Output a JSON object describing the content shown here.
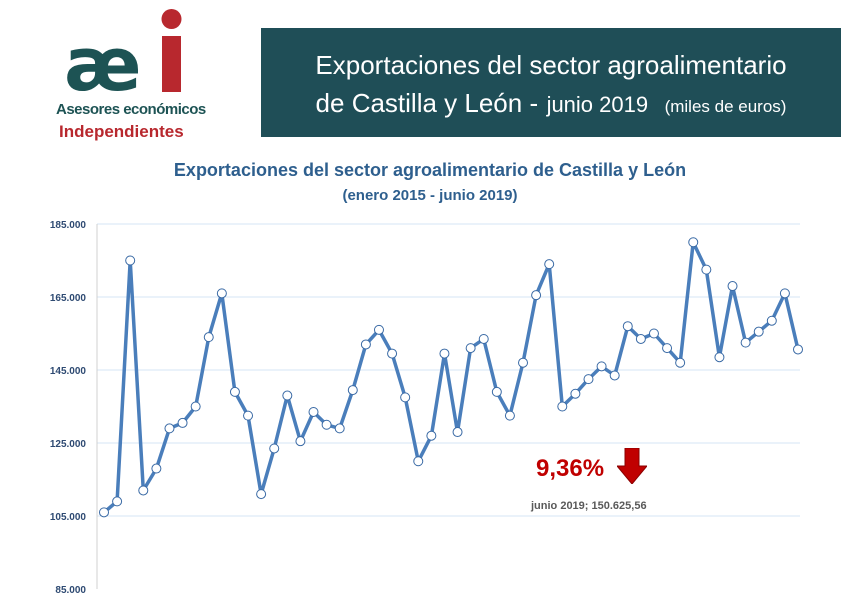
{
  "logo": {
    "mark_text": "aei",
    "line1": "Asesores económicos",
    "line2": "Independientes"
  },
  "banner": {
    "line1": "Exportaciones del sector agroalimentario",
    "line2_main": "de Castilla y León -",
    "line2_date": "junio 2019",
    "line2_unit": "(miles de euros)"
  },
  "colors": {
    "banner_bg": "#1f4e57",
    "title": "#2e5f8e",
    "line": "#4a7ebb",
    "grid": "#d6e4f5",
    "highlight": "#c00000",
    "logo_teal": "#1d5354",
    "logo_red": "#b8282e"
  },
  "annotation": {
    "change_pct": "9,36%",
    "direction_icon": "down-arrow-icon",
    "last_point_label": "junio 2019; 150.625,56"
  },
  "chart_data": {
    "type": "line",
    "title": "Exportaciones del sector agroalimentario de Castilla y León",
    "subtitle": "(enero 2015 - junio 2019)",
    "xlabel": "",
    "ylabel": "",
    "ylim": [
      85000,
      185000
    ],
    "yticks": [
      85000,
      105000,
      125000,
      145000,
      165000,
      185000
    ],
    "ytick_labels": [
      "85.000",
      "105.000",
      "125.000",
      "145.000",
      "165.000",
      "185.000"
    ],
    "grid": true,
    "x_start": "enero 2015",
    "x_end": "junio 2019",
    "series": [
      {
        "name": "Exportaciones (miles de euros)",
        "values": [
          106000,
          109000,
          175000,
          112000,
          118000,
          129000,
          130500,
          135000,
          154000,
          166000,
          139000,
          132500,
          111000,
          123500,
          138000,
          125500,
          133500,
          130000,
          129000,
          139500,
          152000,
          156000,
          149500,
          137500,
          120000,
          127000,
          149500,
          128000,
          151000,
          153500,
          139000,
          132500,
          147000,
          165500,
          174000,
          135000,
          138500,
          142500,
          146000,
          143500,
          157000,
          153500,
          155000,
          151000,
          147000,
          180000,
          172500,
          148500,
          168000,
          152500,
          155500,
          158500,
          166000,
          150625.56
        ]
      }
    ]
  }
}
